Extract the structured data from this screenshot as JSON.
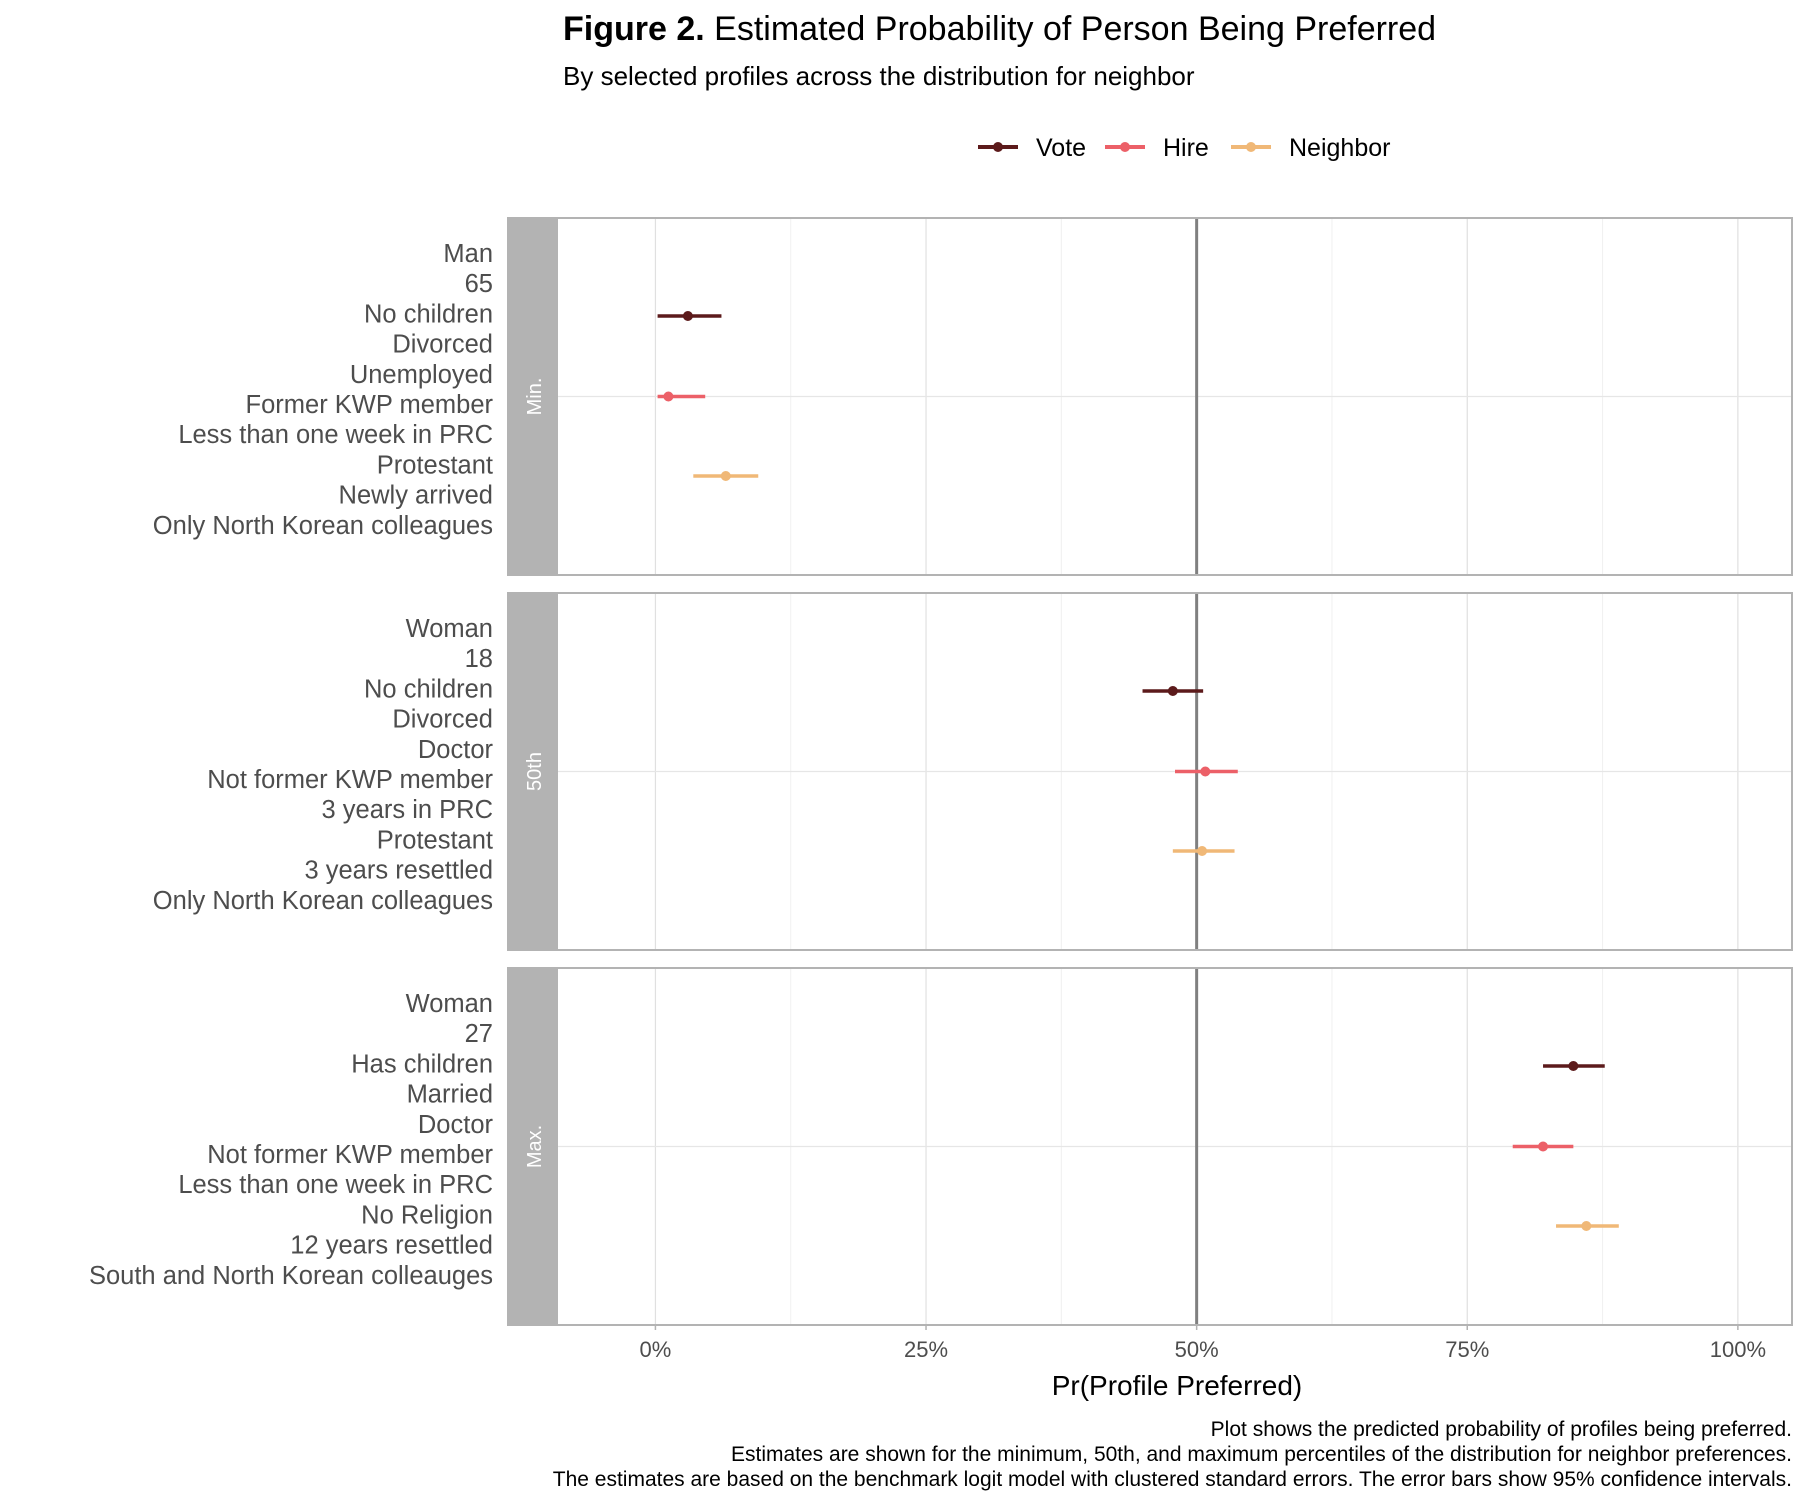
{
  "figure": {
    "label": "Figure 2.",
    "title": "Estimated Probability of Person Being Preferred",
    "subtitle": "By selected profiles across the distribution for neighbor",
    "xlabel": "Pr(Profile Preferred)",
    "captions": [
      "Plot shows the predicted probability of profiles being preferred.",
      "Estimates are shown for the minimum, 50th, and maximum percentiles of the distribution for neighbor preferences.",
      "The estimates are based on the benchmark logit model with clustered standard errors. The error bars show 95% confidence intervals."
    ]
  },
  "colors": {
    "Vote": "#5c1a1b",
    "Hire": "#ec6068",
    "Neighbor": "#f0b877"
  },
  "chart_data": {
    "type": "scatter",
    "xlim": [
      -0.09,
      1.05
    ],
    "x_ticks": [
      0,
      0.25,
      0.5,
      0.75,
      1.0
    ],
    "x_tick_labels": [
      "0%",
      "25%",
      "50%",
      "75%",
      "100%"
    ],
    "reference_line_x": 0.5,
    "grid": true,
    "legend_position": "top",
    "legend": [
      "Vote",
      "Hire",
      "Neighbor"
    ],
    "panels": [
      {
        "strip": "Min.",
        "profile": [
          "Man",
          "65",
          "No children",
          "Divorced",
          "Unemployed",
          "Former KWP member",
          "Less than one week in PRC",
          "Protestant",
          "Newly arrived",
          "Only North Korean colleagues"
        ],
        "series": [
          {
            "name": "Vote",
            "estimate": 0.03,
            "lower": 0.002,
            "upper": 0.061
          },
          {
            "name": "Hire",
            "estimate": 0.012,
            "lower": 0.002,
            "upper": 0.046
          },
          {
            "name": "Neighbor",
            "estimate": 0.065,
            "lower": 0.035,
            "upper": 0.095
          }
        ]
      },
      {
        "strip": "50th",
        "profile": [
          "Woman",
          "18",
          "No children",
          "Divorced",
          "Doctor",
          "Not former KWP member",
          "3 years in PRC",
          "Protestant",
          "3 years resettled",
          "Only North Korean colleagues"
        ],
        "series": [
          {
            "name": "Vote",
            "estimate": 0.478,
            "lower": 0.45,
            "upper": 0.506
          },
          {
            "name": "Hire",
            "estimate": 0.508,
            "lower": 0.48,
            "upper": 0.538
          },
          {
            "name": "Neighbor",
            "estimate": 0.505,
            "lower": 0.478,
            "upper": 0.535
          }
        ]
      },
      {
        "strip": "Max.",
        "profile": [
          "Woman",
          "27",
          "Has children",
          "Married",
          "Doctor",
          "Not former KWP member",
          "Less than one week in PRC",
          "No Religion",
          "12 years resettled",
          "South and North Korean colleauges"
        ],
        "series": [
          {
            "name": "Vote",
            "estimate": 0.848,
            "lower": 0.82,
            "upper": 0.877
          },
          {
            "name": "Hire",
            "estimate": 0.82,
            "lower": 0.792,
            "upper": 0.848
          },
          {
            "name": "Neighbor",
            "estimate": 0.86,
            "lower": 0.832,
            "upper": 0.89
          }
        ]
      }
    ]
  }
}
